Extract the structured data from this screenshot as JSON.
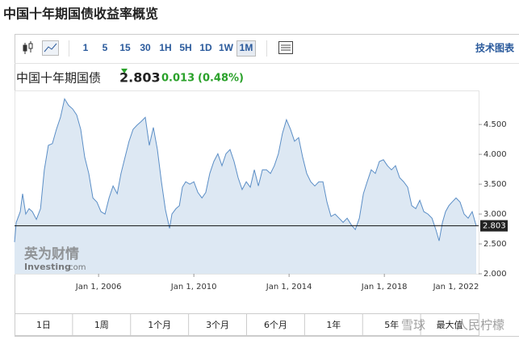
{
  "header": {
    "title": "中国十年期国债收益率概览"
  },
  "toolbar": {
    "intervals": [
      "1",
      "5",
      "15",
      "30",
      "1H",
      "5H",
      "1D",
      "1W",
      "1M"
    ],
    "selected_index": 8,
    "link": "技术图表"
  },
  "quote": {
    "name": "中国十年期国债",
    "change": "0.013",
    "change_pct": "(0.48%)"
  },
  "chart_data": {
    "type": "line",
    "color": "#5b8ec6",
    "fill": "#dde8f3",
    "last_value": 2.803,
    "x": [
      2002.47,
      2002.54,
      2002.71,
      2002.81,
      2002.94,
      2003.08,
      2003.22,
      2003.39,
      2003.56,
      2003.72,
      2003.89,
      2004.06,
      2004.23,
      2004.4,
      2004.57,
      2004.74,
      2004.91,
      2005.08,
      2005.25,
      2005.42,
      2005.59,
      2005.76,
      2005.93,
      2006.1,
      2006.27,
      2006.44,
      2006.61,
      2006.78,
      2006.94,
      2007.11,
      2007.28,
      2007.45,
      2007.62,
      2007.79,
      2007.96,
      2008.13,
      2008.3,
      2008.47,
      2008.64,
      2008.81,
      2008.98,
      2009.08,
      2009.25,
      2009.39,
      2009.52,
      2009.66,
      2009.83,
      2010.0,
      2010.17,
      2010.34,
      2010.5,
      2010.67,
      2010.84,
      2011.01,
      2011.18,
      2011.35,
      2011.52,
      2011.69,
      2011.86,
      2012.03,
      2012.2,
      2012.37,
      2012.54,
      2012.71,
      2012.88,
      2013.05,
      2013.22,
      2013.38,
      2013.55,
      2013.72,
      2013.89,
      2014.06,
      2014.23,
      2014.4,
      2014.57,
      2014.74,
      2014.91,
      2015.08,
      2015.25,
      2015.42,
      2015.59,
      2015.76,
      2015.93,
      2016.1,
      2016.27,
      2016.44,
      2016.61,
      2016.78,
      2016.95,
      2017.12,
      2017.28,
      2017.45,
      2017.62,
      2017.79,
      2017.96,
      2018.13,
      2018.3,
      2018.47,
      2018.64,
      2018.81,
      2018.98,
      2019.15,
      2019.32,
      2019.49,
      2019.66,
      2019.83,
      2020.0,
      2020.17,
      2020.3,
      2020.44,
      2020.57,
      2020.71,
      2020.84,
      2021.01,
      2021.18,
      2021.35,
      2021.52,
      2021.69,
      2021.86
    ],
    "values": [
      2.53,
      2.86,
      3.04,
      3.34,
      3.0,
      3.09,
      3.04,
      2.91,
      3.09,
      3.74,
      4.15,
      4.18,
      4.42,
      4.62,
      4.93,
      4.82,
      4.76,
      4.66,
      4.42,
      3.95,
      3.68,
      3.27,
      3.2,
      3.04,
      3.0,
      3.27,
      3.47,
      3.34,
      3.68,
      3.95,
      4.22,
      4.42,
      4.49,
      4.55,
      4.62,
      4.15,
      4.45,
      4.08,
      3.54,
      3.07,
      2.76,
      3.0,
      3.09,
      3.14,
      3.45,
      3.54,
      3.5,
      3.54,
      3.36,
      3.27,
      3.36,
      3.68,
      3.88,
      4.01,
      3.81,
      4.01,
      4.08,
      3.88,
      3.61,
      3.41,
      3.54,
      3.45,
      3.74,
      3.47,
      3.74,
      3.74,
      3.68,
      3.81,
      4.01,
      4.35,
      4.58,
      4.42,
      4.22,
      4.28,
      3.95,
      3.68,
      3.54,
      3.47,
      3.54,
      3.54,
      3.2,
      2.96,
      3.0,
      2.93,
      2.86,
      2.93,
      2.82,
      2.74,
      2.93,
      3.34,
      3.54,
      3.74,
      3.68,
      3.88,
      3.91,
      3.81,
      3.74,
      3.81,
      3.61,
      3.54,
      3.45,
      3.14,
      3.09,
      3.23,
      3.04,
      3.0,
      2.93,
      2.73,
      2.55,
      2.86,
      3.04,
      3.14,
      3.2,
      3.27,
      3.2,
      3.0,
      2.93,
      3.04,
      2.8
    ],
    "xlim": [
      2002.47,
      2021.96
    ],
    "xticks": [
      {
        "value": 2006,
        "label": "Jan 1, 2006"
      },
      {
        "value": 2010,
        "label": "Jan 1, 2010"
      },
      {
        "value": 2014,
        "label": "Jan 1, 2014"
      },
      {
        "value": 2018,
        "label": "Jan 1, 2018"
      },
      {
        "value": 2022,
        "label": "Jan 1, 2022"
      }
    ],
    "ylim": [
      2.0,
      5.07
    ],
    "yticks": [
      {
        "value": 2,
        "label": "2.000"
      },
      {
        "value": 2.5,
        "label": "2.500"
      },
      {
        "value": 3,
        "label": "3.000"
      },
      {
        "value": 3.5,
        "label": "3.500"
      },
      {
        "value": 4,
        "label": "4.000"
      },
      {
        "value": 4.5,
        "label": "4.500"
      }
    ]
  },
  "watermark": {
    "brand": "英为财情",
    "site": "Investing",
    "domain": ".com"
  },
  "ranges": [
    "1日",
    "1周",
    "1个月",
    "3个月",
    "6个月",
    "1年",
    "5年",
    "最大值"
  ],
  "overlay": [
    "雪球",
    "人民柠檬"
  ]
}
